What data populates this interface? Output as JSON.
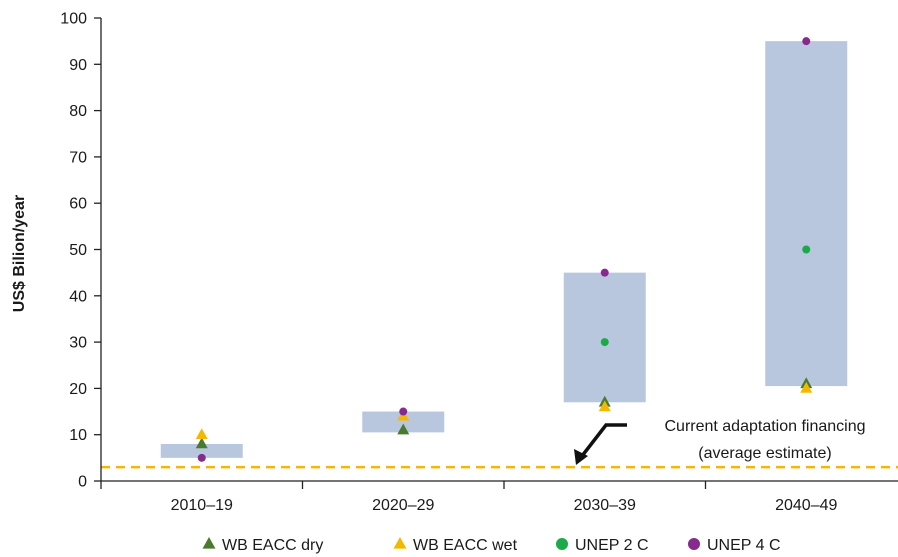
{
  "chart_data": {
    "type": "range-bar-scatter",
    "categories": [
      "2010–19",
      "2020–29",
      "2030–39",
      "2040–49"
    ],
    "ranges": [
      {
        "low": 5,
        "high": 8
      },
      {
        "low": 10.5,
        "high": 15
      },
      {
        "low": 17,
        "high": 45
      },
      {
        "low": 20.5,
        "high": 95
      }
    ],
    "series": [
      {
        "name": "WB EACC dry",
        "marker": "triangle",
        "color": "#4a7a2e",
        "values": [
          8,
          11,
          17,
          21
        ]
      },
      {
        "name": "WB EACC wet",
        "marker": "triangle",
        "color": "#f5b800",
        "values": [
          10,
          14,
          16,
          20
        ]
      },
      {
        "name": "UNEP 2 C",
        "marker": "circle",
        "color": "#1aaa4a",
        "values": [
          null,
          null,
          30,
          50
        ]
      },
      {
        "name": "UNEP 4 C",
        "marker": "circle",
        "color": "#862a8e",
        "values": [
          5,
          15,
          45,
          95
        ]
      }
    ],
    "reference_line": {
      "value": 3,
      "color": "#f5b800",
      "style": "dashed"
    },
    "annotation": {
      "line1": "Current adaptation financing",
      "line2": "(average estimate)"
    },
    "ylabel": "US$ Bilion/year",
    "ylim": [
      0,
      100
    ],
    "yticks": [
      0,
      10,
      20,
      30,
      40,
      50,
      60,
      70,
      80,
      90,
      100
    ],
    "grid": false,
    "legend_position": "bottom",
    "range_color": "#b8c7dd"
  }
}
